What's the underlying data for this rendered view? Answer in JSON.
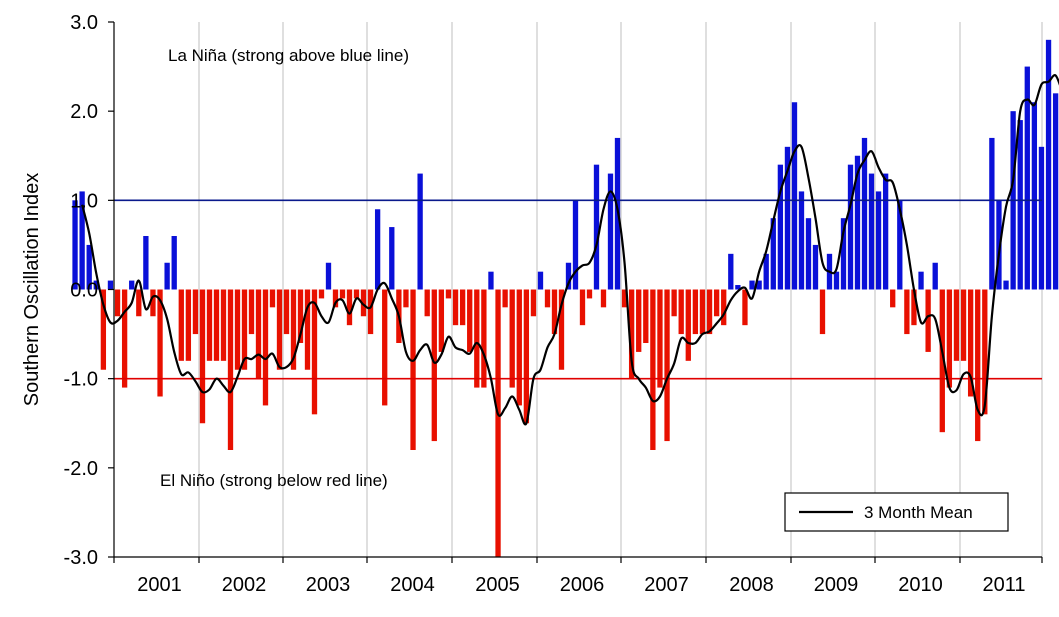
{
  "chart_data": {
    "type": "bar",
    "ylabel": "Southern Oscillation Index",
    "ylim": [
      -3.0,
      3.0
    ],
    "y_ticks": [
      "-3.0",
      "-2.0",
      "-1.0",
      "0.0",
      "1.0",
      "2.0",
      "3.0"
    ],
    "x_year_labels": [
      "2001",
      "2002",
      "2003",
      "2004",
      "2005",
      "2006",
      "2007",
      "2008",
      "2009",
      "2010",
      "2011"
    ],
    "grid": "vertical year gridlines",
    "reference_lines": [
      {
        "value": 1.0,
        "color": "#0a1a8c"
      },
      {
        "value": -1.0,
        "color": "#e00000"
      }
    ],
    "annotations": [
      {
        "text": "La Niña (strong above blue line)"
      },
      {
        "text": "El Niño (strong below red line)"
      }
    ],
    "colors": {
      "positive": "#0a10d8",
      "negative": "#e81000",
      "mean_line": "#000000"
    },
    "legend": {
      "position": "bottom-right",
      "label": "3 Month Mean"
    },
    "series": [
      {
        "kind": "bar",
        "start": "2000-07",
        "values": [
          1.0,
          1.1,
          0.5,
          0.1,
          -0.9,
          0.1,
          -0.3,
          -1.1,
          0.1,
          -0.3,
          0.6,
          -0.3,
          -1.2,
          0.3,
          0.6,
          -0.8,
          -0.8,
          -0.5,
          -1.5,
          -0.8,
          -0.8,
          -0.8,
          -1.8,
          -0.9,
          -0.9,
          -0.5,
          -1.0,
          -1.3,
          -0.2,
          -0.9,
          -0.5,
          -0.9,
          -0.6,
          -0.9,
          -1.4,
          -0.1,
          0.3,
          -0.2,
          -0.1,
          -0.4,
          -0.1,
          -0.3,
          -0.5,
          0.9,
          -1.3,
          0.7,
          -0.6,
          -0.2,
          -1.8,
          1.3,
          -0.3,
          -1.7,
          -0.7,
          -0.1,
          -0.4,
          -0.4,
          -0.7,
          -1.1,
          -1.1,
          0.2,
          -3.0,
          -0.2,
          -1.1,
          -1.3,
          -1.5,
          -0.3,
          0.2,
          -0.2,
          -0.5,
          -0.9,
          0.3,
          1.0,
          -0.4,
          -0.1,
          1.4,
          -0.2,
          1.3,
          1.7,
          -0.2,
          -1.0,
          -0.7,
          -0.6,
          -1.8,
          -1.1,
          -1.7,
          -0.3,
          -0.5,
          -0.8,
          -0.5,
          -0.5,
          -0.5,
          -0.3,
          -0.4,
          0.4,
          0.05,
          -0.4,
          0.1,
          0.1,
          0.4,
          0.8,
          1.4,
          1.6,
          2.1,
          1.1,
          0.8,
          0.5,
          -0.5,
          0.4,
          0.2,
          0.8,
          1.4,
          1.5,
          1.7,
          1.3,
          1.1,
          1.3,
          -0.2,
          1.0,
          -0.5,
          -0.4,
          0.2,
          -0.7,
          0.3,
          -1.6,
          -1.1,
          -0.8,
          -0.8,
          -1.2,
          -1.7,
          -1.4,
          1.7,
          1.0,
          0.1,
          2.0,
          1.9,
          2.5,
          2.1,
          1.6,
          2.8,
          2.2,
          2.2,
          2.2
        ]
      },
      {
        "kind": "line",
        "name": "3 Month Mean",
        "start": "2000-08",
        "values": [
          0.95,
          0.63,
          0.18,
          -0.17,
          -0.37,
          -0.35,
          -0.25,
          -0.15,
          0.1,
          -0.22,
          -0.08,
          -0.12,
          -0.33,
          -0.7,
          -0.95,
          -0.93,
          -1.03,
          -1.15,
          -1.12,
          -1.0,
          -1.08,
          -1.15,
          -0.98,
          -0.78,
          -0.78,
          -0.73,
          -0.78,
          -0.72,
          -0.87,
          -0.87,
          -0.77,
          -0.5,
          -0.2,
          -0.15,
          -0.3,
          -0.37,
          -0.15,
          -0.12,
          -0.27,
          -0.1,
          -0.17,
          -0.2,
          0.0,
          0.07,
          -0.1,
          -0.3,
          -0.7,
          -0.8,
          -0.68,
          -0.62,
          -0.82,
          -0.73,
          -0.53,
          -0.65,
          -0.68,
          -0.72,
          -0.6,
          -0.73,
          -1.0,
          -1.4,
          -1.33,
          -1.2,
          -1.35,
          -1.5,
          -1.0,
          -0.9,
          -0.65,
          -0.5,
          -0.17,
          0.07,
          0.2,
          0.27,
          0.3,
          0.5,
          0.9,
          1.1,
          0.9,
          0.3,
          -0.8,
          -1.0,
          -1.1,
          -1.25,
          -1.2,
          -1.0,
          -0.83,
          -0.55,
          -0.6,
          -0.6,
          -0.5,
          -0.47,
          -0.38,
          -0.28,
          -0.12,
          -0.02,
          0.02,
          -0.1,
          0.2,
          0.43,
          0.77,
          1.1,
          1.33,
          1.55,
          1.6,
          1.25,
          0.8,
          0.3,
          0.2,
          0.23,
          0.65,
          0.95,
          1.3,
          1.45,
          1.55,
          1.37,
          1.23,
          1.2,
          0.9,
          0.5,
          0.0,
          -0.37,
          -0.3,
          -0.33,
          -0.7,
          -1.1,
          -1.13,
          -0.95,
          -0.98,
          -1.35,
          -1.3,
          -0.3,
          0.4,
          0.93,
          1.23,
          2.0,
          2.13,
          2.07,
          2.3,
          2.33,
          2.4,
          2.2
        ]
      }
    ]
  }
}
